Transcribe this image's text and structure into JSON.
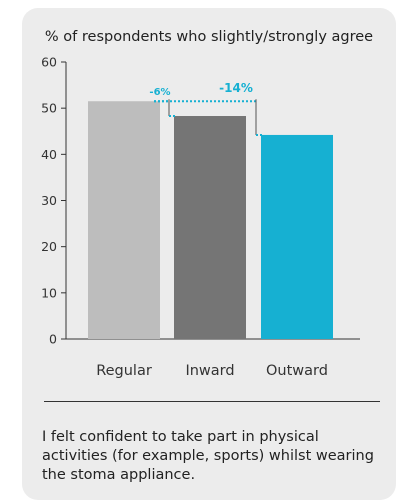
{
  "chart_data": {
    "type": "bar",
    "title": "% of respondents who slightly/strongly agree",
    "categories": [
      "Regular",
      "Inward",
      "Outward"
    ],
    "values": [
      51.5,
      48.3,
      44.2
    ],
    "colors": [
      "#bdbdbd",
      "#757575",
      "#16b0d2"
    ],
    "ylim": [
      0,
      60
    ],
    "yticks": [
      "0",
      "10",
      "20",
      "30",
      "40",
      "50",
      "60"
    ],
    "annotations": [
      {
        "label": "-6%",
        "from": "Regular",
        "to": "Inward",
        "color": "#16b0d2"
      },
      {
        "label": "-14%",
        "from": "Regular",
        "to": "Outward",
        "color": "#16b0d2"
      }
    ]
  },
  "caption": "I felt confident to take part in physical activities (for example, sports) whilst wearing the stoma appliance."
}
